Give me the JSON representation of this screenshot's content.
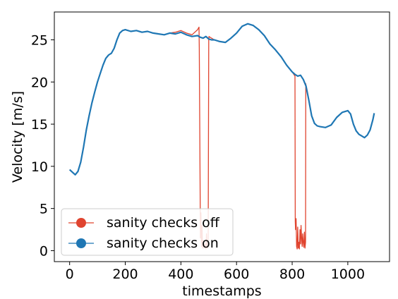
{
  "chart_data": {
    "type": "line",
    "title": "",
    "xlabel": "timestamps",
    "ylabel": "Velocity [m/s]",
    "xlim": [
      -55,
      1150
    ],
    "ylim": [
      -1.3,
      28.3
    ],
    "xticks": [
      0,
      200,
      400,
      600,
      800,
      1000
    ],
    "yticks": [
      0,
      5,
      10,
      15,
      20,
      25
    ],
    "grid": false,
    "legend": "lower-left",
    "series": [
      {
        "name": "sanity checks off",
        "color": "#e0442f",
        "x": [
          0,
          10,
          20,
          30,
          40,
          50,
          60,
          70,
          80,
          90,
          100,
          110,
          120,
          130,
          140,
          150,
          160,
          170,
          180,
          190,
          200,
          220,
          240,
          260,
          280,
          300,
          320,
          340,
          360,
          380,
          400,
          420,
          440,
          460,
          465,
          466,
          470,
          472,
          474,
          476,
          478,
          480,
          483,
          486,
          490,
          492,
          494,
          496,
          498,
          500,
          501,
          505,
          510,
          520,
          540,
          560,
          580,
          600,
          620,
          640,
          660,
          680,
          700,
          720,
          740,
          760,
          780,
          800,
          810,
          811,
          812,
          814,
          816,
          818,
          820,
          822,
          824,
          826,
          828,
          830,
          832,
          834,
          836,
          838,
          840,
          842,
          844,
          846,
          848,
          849,
          850,
          860,
          870,
          880,
          890,
          900,
          920,
          940,
          960,
          980,
          1000,
          1010,
          1020,
          1030,
          1040,
          1050,
          1060,
          1070,
          1080,
          1090,
          1095
        ],
        "y": [
          9.6,
          9.3,
          9.0,
          9.4,
          10.5,
          12.3,
          14.3,
          16.0,
          17.5,
          18.8,
          20.0,
          21.0,
          22.0,
          22.8,
          23.2,
          23.4,
          24.0,
          25.0,
          25.8,
          26.1,
          26.2,
          26.0,
          26.1,
          25.9,
          26.0,
          25.8,
          25.7,
          25.6,
          25.8,
          25.9,
          26.1,
          25.8,
          25.6,
          26.2,
          26.5,
          24.0,
          1.5,
          4.5,
          0.5,
          3.0,
          0.3,
          1.2,
          0.3,
          0.8,
          0.2,
          2.0,
          0.4,
          0.3,
          0.6,
          25.0,
          25.4,
          25.3,
          25.2,
          25.0,
          24.8,
          24.7,
          25.2,
          25.8,
          26.6,
          26.9,
          26.7,
          26.2,
          25.5,
          24.5,
          23.8,
          23.0,
          22.0,
          21.2,
          20.7,
          3.5,
          2.5,
          3.8,
          0.5,
          0.2,
          2.8,
          0.3,
          1.0,
          0.2,
          2.5,
          0.8,
          3.0,
          1.5,
          0.5,
          2.0,
          0.9,
          0.4,
          2.2,
          0.3,
          1.0,
          19.8,
          19.5,
          17.8,
          16.0,
          15.1,
          14.8,
          14.7,
          14.6,
          14.9,
          15.8,
          16.4,
          16.6,
          16.2,
          15.0,
          14.2,
          13.8,
          13.6,
          13.4,
          13.7,
          14.3,
          15.5,
          16.3
        ]
      },
      {
        "name": "sanity checks on",
        "color": "#1f77b4",
        "x": [
          0,
          10,
          20,
          30,
          40,
          50,
          60,
          70,
          80,
          90,
          100,
          110,
          120,
          130,
          140,
          150,
          160,
          170,
          180,
          190,
          200,
          220,
          240,
          260,
          280,
          300,
          320,
          340,
          360,
          380,
          400,
          420,
          440,
          460,
          470,
          480,
          490,
          500,
          510,
          520,
          540,
          560,
          580,
          600,
          620,
          640,
          660,
          680,
          700,
          720,
          740,
          760,
          780,
          800,
          810,
          820,
          830,
          840,
          850,
          860,
          870,
          880,
          890,
          900,
          920,
          940,
          960,
          980,
          1000,
          1010,
          1020,
          1030,
          1040,
          1050,
          1060,
          1070,
          1080,
          1090,
          1095
        ],
        "y": [
          9.6,
          9.3,
          9.0,
          9.4,
          10.5,
          12.3,
          14.3,
          16.0,
          17.5,
          18.8,
          20.0,
          21.0,
          22.0,
          22.8,
          23.2,
          23.4,
          24.0,
          25.0,
          25.8,
          26.1,
          26.2,
          26.0,
          26.1,
          25.9,
          26.0,
          25.8,
          25.7,
          25.6,
          25.8,
          25.7,
          25.9,
          25.6,
          25.4,
          25.5,
          25.3,
          25.2,
          25.4,
          25.1,
          25.0,
          25.0,
          24.8,
          24.7,
          25.2,
          25.8,
          26.6,
          26.9,
          26.7,
          26.2,
          25.5,
          24.5,
          23.8,
          23.0,
          22.0,
          21.2,
          20.9,
          20.7,
          20.8,
          20.3,
          19.5,
          17.8,
          16.0,
          15.1,
          14.8,
          14.7,
          14.6,
          14.9,
          15.8,
          16.4,
          16.6,
          16.2,
          15.0,
          14.2,
          13.8,
          13.6,
          13.4,
          13.7,
          14.3,
          15.5,
          16.3
        ]
      }
    ]
  }
}
